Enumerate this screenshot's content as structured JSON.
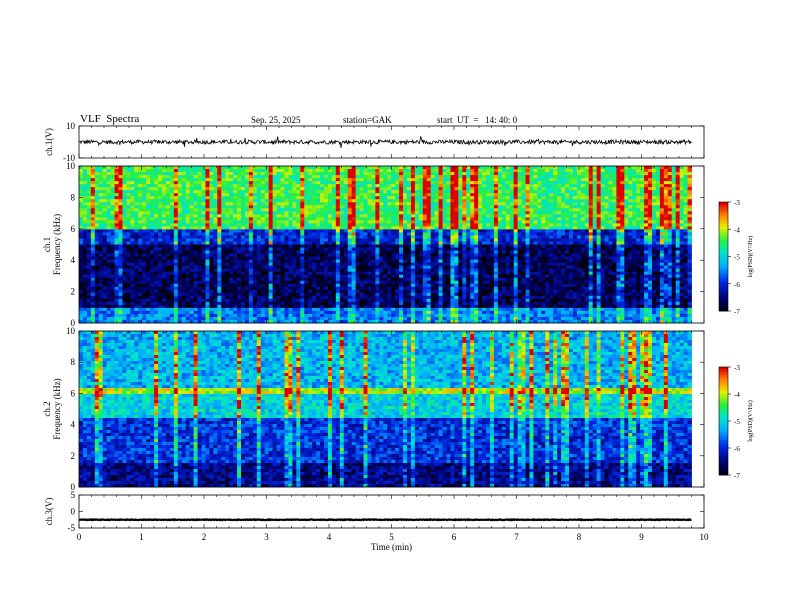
{
  "header": {
    "title": "VLF  Spectra",
    "date": "Sep. 25, 2025",
    "station": "station=GAK",
    "start": "start  UT  =   14: 40: 0"
  },
  "chart_data": [
    {
      "id": "ch1-waveform",
      "type": "line",
      "ylabel": "ch.1(V)",
      "ylim": [
        -10,
        10
      ],
      "y_ticks": [
        "10",
        "-10"
      ],
      "xlim": [
        0,
        10
      ],
      "series": [
        {
          "values_note": "waveform noise around baseline",
          "baseline": 0,
          "amplitude": 2.5,
          "x_end": 9.8
        }
      ]
    },
    {
      "id": "ch1-spectrogram",
      "type": "heatmap",
      "ylabel": "ch.1\nFrequency  (kHz)",
      "ylim": [
        0,
        10
      ],
      "y_ticks": [
        "0",
        "2",
        "4",
        "6",
        "8",
        "10"
      ],
      "xlim": [
        0,
        10
      ],
      "x_end": 9.8,
      "colorbar": {
        "label": "log(PSD)(V²/Hz)",
        "range": [
          -7,
          -3
        ],
        "ticks": [
          "-3",
          "-4",
          "-5",
          "-6",
          "-7"
        ]
      },
      "bands": [
        {
          "from": 0,
          "to": 1,
          "level": -5.5
        },
        {
          "from": 1,
          "to": 5,
          "level": -6.6
        },
        {
          "from": 5,
          "to": 6,
          "level": -6.0
        },
        {
          "from": 6,
          "to": 10,
          "level": -4.4
        }
      ]
    },
    {
      "id": "ch2-spectrogram",
      "type": "heatmap",
      "ylabel": "ch.2\nFrequency  (kHz)",
      "ylim": [
        0,
        10
      ],
      "y_ticks": [
        "0",
        "2",
        "4",
        "6",
        "8",
        "10"
      ],
      "xlim": [
        0,
        10
      ],
      "x_end": 9.8,
      "colorbar": {
        "label": "log(PSD)(V²/Hz)",
        "range": [
          -7,
          -3
        ],
        "ticks": [
          "-3",
          "-4",
          "-5",
          "-6",
          "-7"
        ]
      },
      "bands": [
        {
          "from": 0,
          "to": 1.5,
          "level": -6.4
        },
        {
          "from": 1.5,
          "to": 4.5,
          "level": -5.9
        },
        {
          "from": 4.5,
          "to": 6,
          "level": -5.0
        },
        {
          "from": 6,
          "to": 6.4,
          "level": -4.0
        },
        {
          "from": 6.4,
          "to": 10,
          "level": -5.2
        }
      ]
    },
    {
      "id": "ch3-waveform",
      "type": "line",
      "ylabel": "ch.3(V)",
      "ylim": [
        -5,
        5
      ],
      "y_ticks": [
        "5",
        "0",
        "-5"
      ],
      "xlim": [
        0,
        10
      ],
      "xlabel": "Time  (min)",
      "x_ticks": [
        "0",
        "1",
        "2",
        "3",
        "4",
        "5",
        "6",
        "7",
        "8",
        "9",
        "10"
      ],
      "series": [
        {
          "values_note": "flat dense trace",
          "baseline": -2.5,
          "amplitude": 0.2,
          "x_end": 9.8
        }
      ]
    }
  ]
}
